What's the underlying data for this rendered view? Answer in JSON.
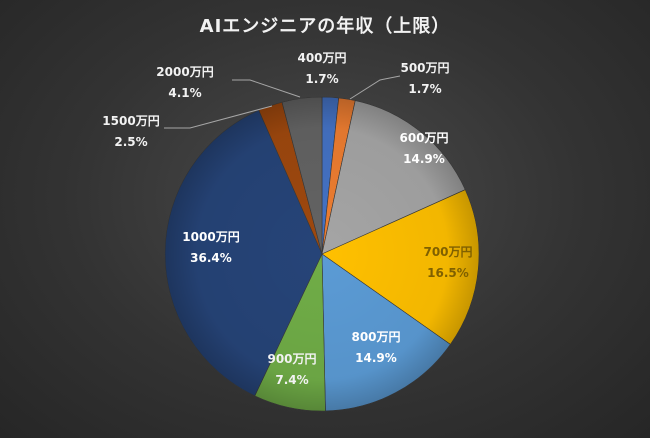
{
  "chart_data": {
    "type": "pie",
    "title": "AIエンジニアの年収（上限）",
    "categories": [
      "400万円",
      "500万円",
      "600万円",
      "700万円",
      "800万円",
      "900万円",
      "1000万円",
      "1500万円",
      "2000万円"
    ],
    "values": [
      1.7,
      1.7,
      14.9,
      16.5,
      14.9,
      7.4,
      36.4,
      2.5,
      4.1
    ],
    "value_labels": [
      "1.7%",
      "1.7%",
      "14.9%",
      "16.5%",
      "14.9%",
      "7.4%",
      "36.4%",
      "2.5%",
      "4.1%"
    ],
    "unit": "%",
    "start_angle_deg": 0,
    "direction": "clockwise",
    "legend": "none",
    "colors": [
      "#4472c4",
      "#ed7d31",
      "#a5a5a5",
      "#ffc000",
      "#5b9bd5",
      "#70ad47",
      "#264478",
      "#9e480e",
      "#636363"
    ],
    "label_colors": [
      "#f2f2f2",
      "#f2f2f2",
      "#ffffff",
      "#7f6000",
      "#ffffff",
      "#f2f2f2",
      "#ffffff",
      "#f2f2f2",
      "#f2f2f2"
    ],
    "leader_line_color": "#a6a6a6"
  }
}
